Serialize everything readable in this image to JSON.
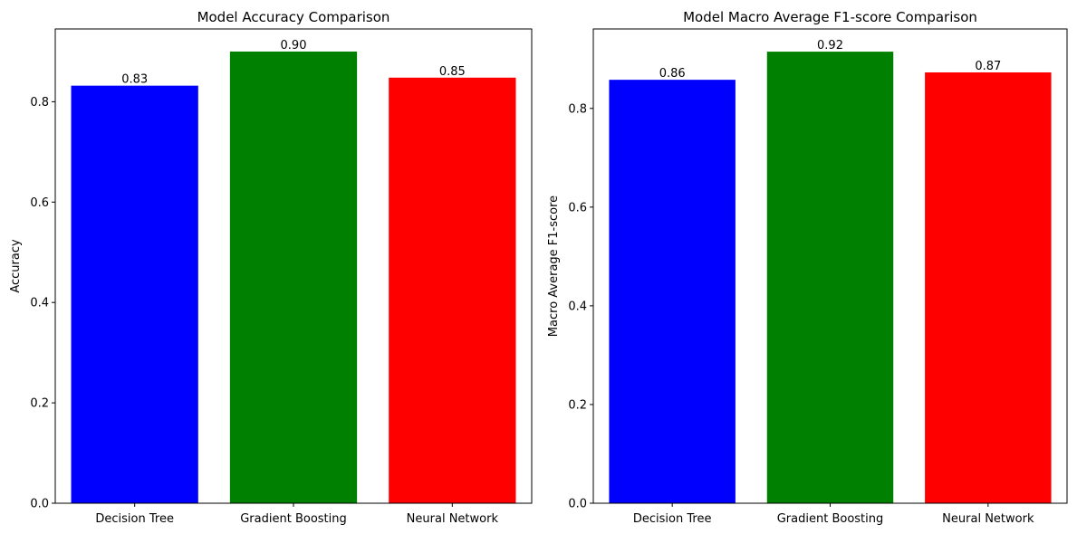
{
  "chart_data": [
    {
      "type": "bar",
      "title": "Model Accuracy Comparison",
      "xlabel": "",
      "ylabel": "Accuracy",
      "categories": [
        "Decision Tree",
        "Gradient Boosting",
        "Neural Network"
      ],
      "values": [
        0.832,
        0.9,
        0.848
      ],
      "value_labels": [
        "0.83",
        "0.90",
        "0.85"
      ],
      "colors": [
        "#0000ff",
        "#008000",
        "#ff0000"
      ],
      "ylim": [
        0,
        0.945
      ],
      "yticks": [
        0.0,
        0.2,
        0.4,
        0.6,
        0.8
      ],
      "ytick_labels": [
        "0.0",
        "0.2",
        "0.4",
        "0.6",
        "0.8"
      ],
      "grid": false
    },
    {
      "type": "bar",
      "title": "Model Macro Average F1-score Comparison",
      "xlabel": "",
      "ylabel": "Macro Average F1-score",
      "categories": [
        "Decision Tree",
        "Gradient Boosting",
        "Neural Network"
      ],
      "values": [
        0.858,
        0.915,
        0.873
      ],
      "value_labels": [
        "0.86",
        "0.92",
        "0.87"
      ],
      "colors": [
        "#0000ff",
        "#008000",
        "#ff0000"
      ],
      "ylim": [
        0,
        0.961
      ],
      "yticks": [
        0.0,
        0.2,
        0.4,
        0.6,
        0.8
      ],
      "ytick_labels": [
        "0.0",
        "0.2",
        "0.4",
        "0.6",
        "0.8"
      ],
      "grid": false
    }
  ]
}
